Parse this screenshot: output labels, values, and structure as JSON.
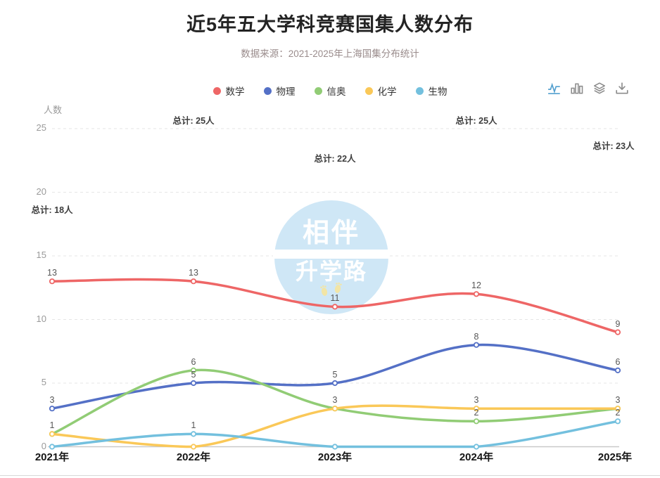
{
  "title": "近5年五大学科竞赛国集人数分布",
  "subtitle": "数据来源：2021-2025年上海国集分布统计",
  "watermark": {
    "line1": "相伴",
    "line2": "升学路",
    "circle_color": "#cfe7f6",
    "feet_color": "#f2e5a6"
  },
  "toolbox": {
    "icons": [
      {
        "name": "line-chart-icon",
        "active": true
      },
      {
        "name": "bar-chart-icon",
        "active": false
      },
      {
        "name": "stack-icon",
        "active": false
      },
      {
        "name": "download-icon",
        "active": false
      }
    ],
    "active_color": "#54a0cf",
    "inactive_color": "#8c8c8c"
  },
  "chart_data": {
    "type": "line",
    "smooth": true,
    "grid": "dashed",
    "legend_position": "top-center",
    "x": [
      "2021年",
      "2022年",
      "2023年",
      "2024年",
      "2025年"
    ],
    "series": [
      {
        "name": "数学",
        "color": "#ee6666",
        "values": [
          13,
          13,
          11,
          12,
          9
        ]
      },
      {
        "name": "物理",
        "color": "#5470c6",
        "values": [
          3,
          5,
          5,
          8,
          6
        ]
      },
      {
        "name": "信奥",
        "color": "#91cc75",
        "values": [
          1,
          6,
          3,
          2,
          3
        ]
      },
      {
        "name": "化学",
        "color": "#fac858",
        "values": [
          1,
          0,
          3,
          3,
          3
        ]
      },
      {
        "name": "生物",
        "color": "#73c0de",
        "values": [
          0,
          1,
          0,
          0,
          2
        ]
      }
    ],
    "totals": {
      "prefix": "总计: ",
      "suffix": "人",
      "values": [
        18,
        25,
        22,
        25,
        23
      ]
    },
    "ylabel": "人数",
    "yticks": [
      0,
      5,
      10,
      15,
      20,
      25
    ],
    "ylim": [
      0,
      25
    ],
    "value_label_rule": "non-zero values shown above points"
  }
}
